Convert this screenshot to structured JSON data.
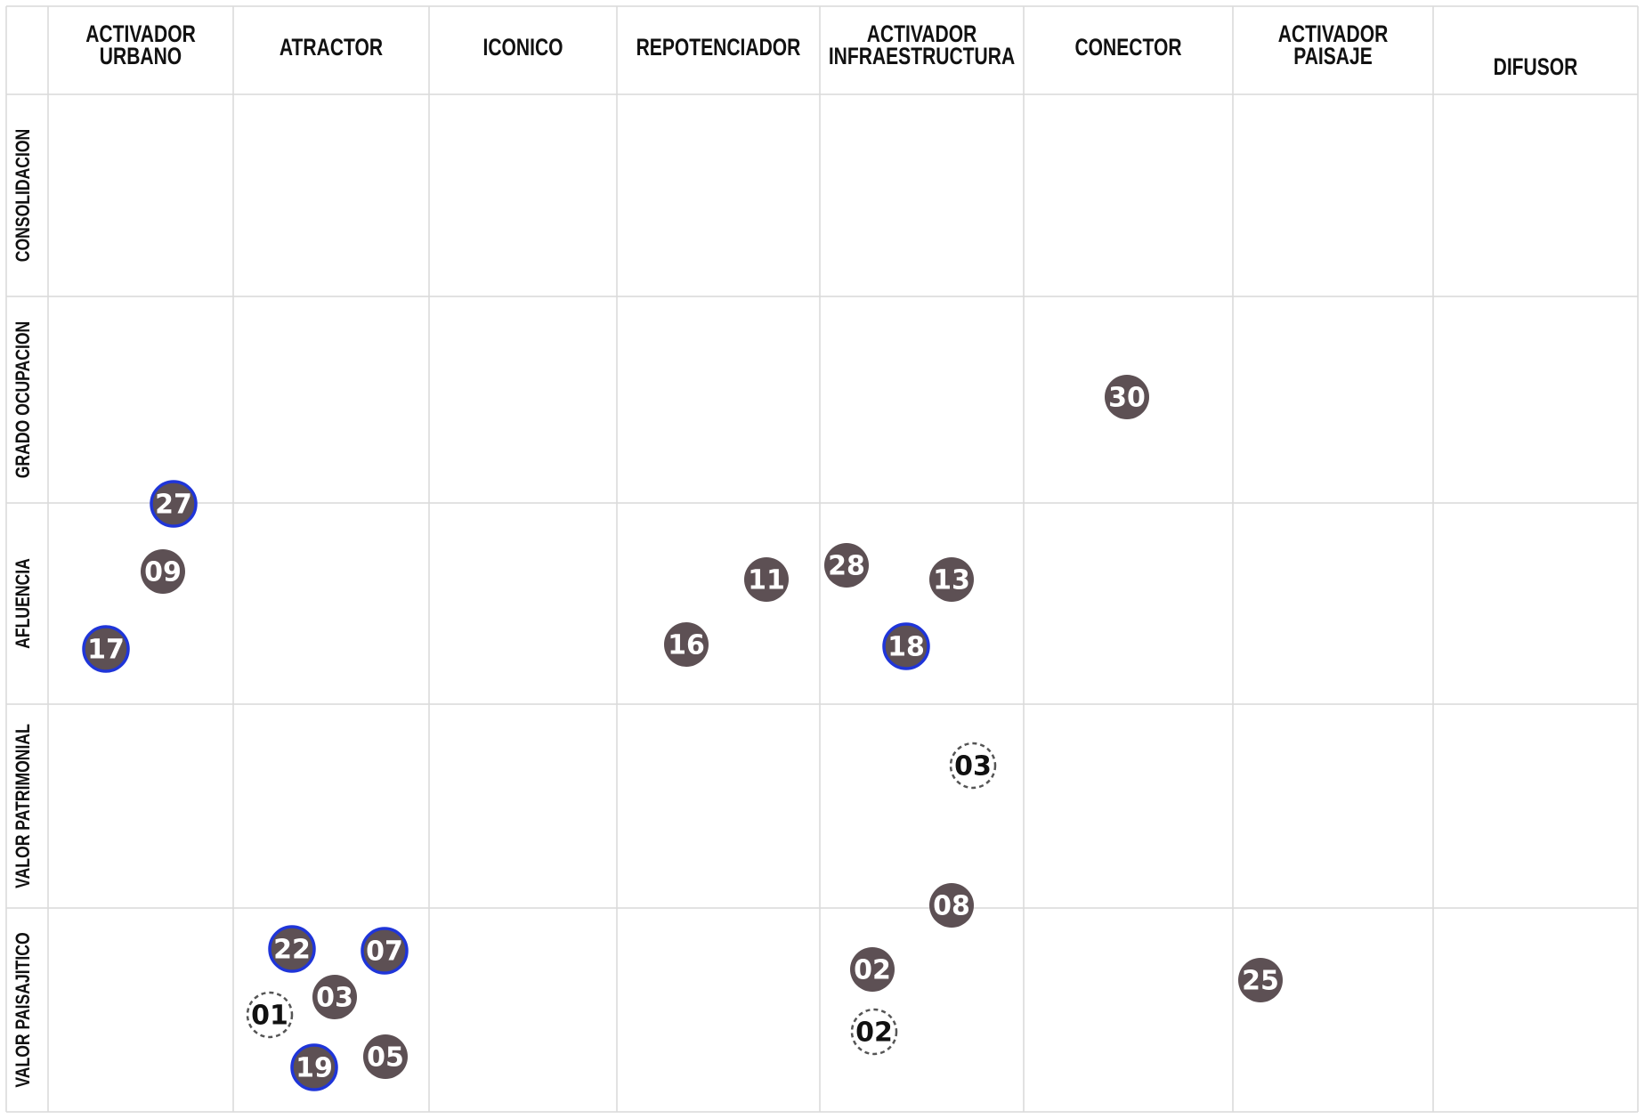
{
  "columns": [
    {
      "lines": [
        "ACTIVADOR",
        "URBANO"
      ]
    },
    {
      "lines": [
        "ATRACTOR"
      ]
    },
    {
      "lines": [
        "ICONICO"
      ]
    },
    {
      "lines": [
        "REPOTENCIADOR"
      ]
    },
    {
      "lines": [
        "ACTIVADOR",
        "INFRAESTRUCTURA"
      ]
    },
    {
      "lines": [
        "CONECTOR"
      ]
    },
    {
      "lines": [
        "ACTIVADOR",
        "PAISAJE"
      ]
    },
    {
      "lines": [
        "DIFUSOR"
      ]
    }
  ],
  "rows": [
    "CONSOLIDACION",
    "GRADO OCUPACION",
    "AFLUENCIA",
    "VALOR PATRIMONIAL",
    "VALOR PAISAJITICO"
  ],
  "marker_styles": {
    "solid": {
      "fill": "#5d5054",
      "text": "#ffffff"
    },
    "highlight": {
      "fill": "#5d5054",
      "ring": "#1f35d9",
      "text": "#ffffff"
    },
    "dashed": {
      "fill": "#ffffff",
      "ring": "#555555",
      "text": "#111111"
    }
  },
  "markers": [
    {
      "label": "30",
      "style": "solid"
    },
    {
      "label": "27",
      "style": "highlight"
    },
    {
      "label": "09",
      "style": "solid"
    },
    {
      "label": "17",
      "style": "highlight"
    },
    {
      "label": "11",
      "style": "solid"
    },
    {
      "label": "16",
      "style": "solid"
    },
    {
      "label": "28",
      "style": "solid"
    },
    {
      "label": "13",
      "style": "solid"
    },
    {
      "label": "18",
      "style": "highlight"
    },
    {
      "label": "03",
      "style": "dashed"
    },
    {
      "label": "08",
      "style": "solid"
    },
    {
      "label": "22",
      "style": "highlight"
    },
    {
      "label": "07",
      "style": "highlight"
    },
    {
      "label": "03",
      "style": "solid"
    },
    {
      "label": "01",
      "style": "dashed"
    },
    {
      "label": "19",
      "style": "highlight"
    },
    {
      "label": "05",
      "style": "solid"
    },
    {
      "label": "02",
      "style": "solid"
    },
    {
      "label": "02",
      "style": "dashed"
    },
    {
      "label": "25",
      "style": "solid"
    }
  ]
}
